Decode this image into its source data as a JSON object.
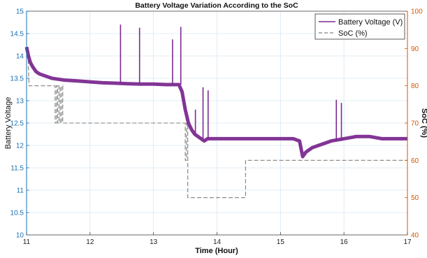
{
  "chart_data": {
    "type": "line",
    "title": "Battery Voltage Variation According to the SoC",
    "xlabel": "Time (Hour)",
    "ylabel_left": "Battery Voltage",
    "ylabel_right": "SoC (%)",
    "xlim": [
      11,
      17
    ],
    "ylim_left": [
      10,
      15
    ],
    "ylim_right": [
      40,
      100
    ],
    "x_ticks": [
      11,
      12,
      13,
      14,
      15,
      16,
      17
    ],
    "y_left_ticks": [
      10,
      10.5,
      11,
      11.5,
      12,
      12.5,
      13,
      13.5,
      14,
      14.5,
      15
    ],
    "y_right_ticks": [
      40,
      50,
      60,
      70,
      80,
      90,
      100
    ],
    "grid": true,
    "legend_position": "top-right",
    "legend": [
      "Battery Voltage (V)",
      "SoC (%)"
    ],
    "colors": {
      "voltage": "#7b2a8f",
      "soc": "#808080",
      "left_axis": "#1a6fb0",
      "right_axis": "#d45500",
      "grid": "#d7e6f2"
    },
    "series": [
      {
        "name": "Battery Voltage (V)",
        "axis": "left",
        "style": "solid",
        "x": [
          11.0,
          11.03,
          11.06,
          11.1,
          11.15,
          11.2,
          11.3,
          11.4,
          11.5,
          11.6,
          11.8,
          12.0,
          12.2,
          12.4,
          12.6,
          12.8,
          13.0,
          13.2,
          13.4,
          13.45,
          13.5,
          13.55,
          13.6,
          13.65,
          13.7,
          13.75,
          13.8,
          13.85,
          13.9,
          14.0,
          14.2,
          14.4,
          14.6,
          14.8,
          15.0,
          15.2,
          15.3,
          15.35,
          15.4,
          15.5,
          15.6,
          15.8,
          16.0,
          16.2,
          16.4,
          16.6,
          16.8,
          17.0
        ],
        "y": [
          14.2,
          14.0,
          13.85,
          13.75,
          13.65,
          13.6,
          13.55,
          13.5,
          13.48,
          13.46,
          13.44,
          13.42,
          13.4,
          13.39,
          13.38,
          13.37,
          13.37,
          13.36,
          13.36,
          13.2,
          12.8,
          12.5,
          12.35,
          12.25,
          12.2,
          12.15,
          12.1,
          12.15,
          12.15,
          12.15,
          12.15,
          12.15,
          12.15,
          12.15,
          12.15,
          12.15,
          12.1,
          11.75,
          11.85,
          11.95,
          12.0,
          12.1,
          12.15,
          12.2,
          12.2,
          12.15,
          12.15,
          12.15
        ],
        "spikes": [
          {
            "x": 12.48,
            "y": 14.7
          },
          {
            "x": 12.78,
            "y": 14.63
          },
          {
            "x": 13.3,
            "y": 14.37
          },
          {
            "x": 13.43,
            "y": 14.65
          },
          {
            "x": 13.66,
            "y": 12.8
          },
          {
            "x": 13.78,
            "y": 13.3
          },
          {
            "x": 13.86,
            "y": 13.23
          },
          {
            "x": 15.88,
            "y": 13.02
          },
          {
            "x": 15.96,
            "y": 12.95
          }
        ]
      },
      {
        "name": "SoC (%)",
        "axis": "right",
        "style": "dashed",
        "x": [
          11.0,
          11.02,
          11.04,
          11.05,
          11.45,
          11.45,
          11.47,
          11.47,
          11.49,
          11.49,
          11.51,
          11.51,
          11.53,
          11.53,
          11.55,
          11.55,
          11.57,
          11.57,
          11.6,
          11.6,
          13.5,
          13.5,
          13.52,
          13.52,
          13.54,
          13.54,
          14.45,
          14.45,
          14.5,
          14.5,
          17.0
        ],
        "y": [
          90,
          90,
          80,
          80,
          80,
          70,
          70,
          80,
          80,
          70,
          70,
          80,
          80,
          70,
          70,
          80,
          80,
          70,
          70,
          70,
          70,
          60,
          60,
          70,
          70,
          50,
          50,
          60,
          60,
          60,
          60
        ]
      }
    ]
  }
}
